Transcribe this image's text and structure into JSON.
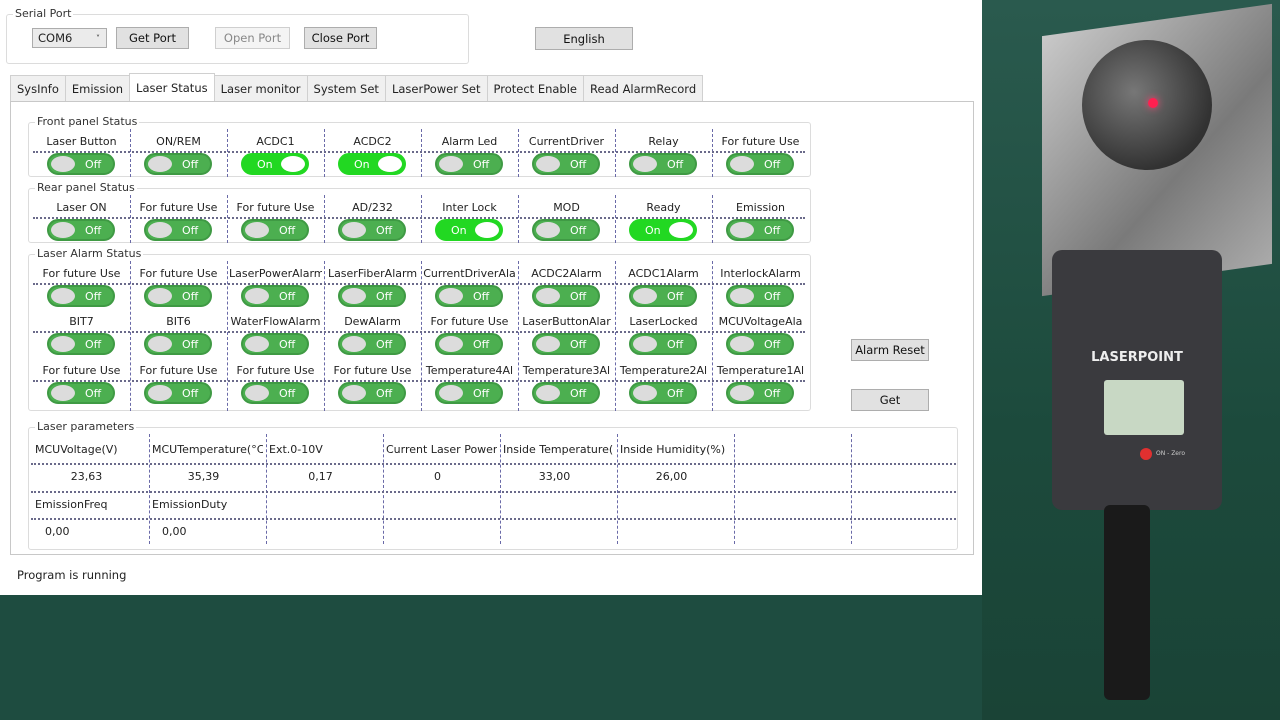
{
  "serial_port": {
    "title": "Serial Port",
    "port_value": "COM6",
    "get_port": "Get Port",
    "open_port": "Open Port",
    "close_port": "Close Port",
    "language": "English"
  },
  "tabs": [
    {
      "label": "SysInfo"
    },
    {
      "label": "Emission"
    },
    {
      "label": "Laser Status",
      "active": true
    },
    {
      "label": "Laser monitor"
    },
    {
      "label": "System Set"
    },
    {
      "label": "LaserPower Set"
    },
    {
      "label": "Protect Enable"
    },
    {
      "label": "Read AlarmRecord"
    }
  ],
  "front_panel": {
    "title": "Front panel Status",
    "items": [
      [
        "Laser Button",
        "Off"
      ],
      [
        "ON/REM",
        "Off"
      ],
      [
        "ACDC1",
        "On"
      ],
      [
        "ACDC2",
        "On"
      ],
      [
        "Alarm Led",
        "Off"
      ],
      [
        "CurrentDriver",
        "Off"
      ],
      [
        "Relay",
        "Off"
      ],
      [
        "For future Use",
        "Off"
      ]
    ]
  },
  "rear_panel": {
    "title": "Rear panel Status",
    "items": [
      [
        "Laser ON",
        "Off"
      ],
      [
        "For future Use",
        "Off"
      ],
      [
        "For future Use",
        "Off"
      ],
      [
        "AD/232",
        "Off"
      ],
      [
        "Inter Lock",
        "On"
      ],
      [
        "MOD",
        "Off"
      ],
      [
        "Ready",
        "On"
      ],
      [
        "Emission",
        "Off"
      ]
    ]
  },
  "alarm": {
    "title": "Laser Alarm Status",
    "items": [
      [
        "For future Use",
        "Off"
      ],
      [
        "For future Use",
        "Off"
      ],
      [
        "LaserPowerAlarm",
        "Off"
      ],
      [
        "LaserFiberAlarm",
        "Off"
      ],
      [
        "CurrentDriverAla",
        "Off"
      ],
      [
        "ACDC2Alarm",
        "Off"
      ],
      [
        "ACDC1Alarm",
        "Off"
      ],
      [
        "InterlockAlarm",
        "Off"
      ],
      [
        "BIT7",
        "Off"
      ],
      [
        "BIT6",
        "Off"
      ],
      [
        "WaterFlowAlarm",
        "Off"
      ],
      [
        "DewAlarm",
        "Off"
      ],
      [
        "For future Use",
        "Off"
      ],
      [
        "LaserButtonAlar",
        "Off"
      ],
      [
        "LaserLocked",
        "Off"
      ],
      [
        "MCUVoltageAla",
        "Off"
      ],
      [
        "For future Use",
        "Off"
      ],
      [
        "For future Use",
        "Off"
      ],
      [
        "For future Use",
        "Off"
      ],
      [
        "For future Use",
        "Off"
      ],
      [
        "Temperature4Al",
        "Off"
      ],
      [
        "Temperature3Al",
        "Off"
      ],
      [
        "Temperature2Al",
        "Off"
      ],
      [
        "Temperature1Al",
        "Off"
      ]
    ]
  },
  "buttons": {
    "alarm_reset": "Alarm Reset",
    "get": "Get"
  },
  "parameters": {
    "title": "Laser parameters",
    "rows": [
      [
        "MCUVoltage(V)",
        "MCUTemperature(°C",
        "Ext.0-10V",
        "Current Laser Power(",
        "Inside Temperature(°",
        "Inside Humidity(%)",
        "",
        ""
      ],
      [
        "23,63",
        "35,39",
        "0,17",
        "0",
        "33,00",
        "26,00",
        "",
        ""
      ],
      [
        "EmissionFreq",
        "EmissionDuty",
        "",
        "",
        "",
        "",
        "",
        ""
      ],
      [
        "0,00",
        "0,00",
        "",
        "",
        "",
        "",
        "",
        ""
      ]
    ]
  },
  "status_text": "Program is running",
  "photo": {
    "device_brand": "LASERPOINT",
    "device_button": "ON - Zero"
  },
  "colors": {
    "toggle_off": "#4caf50",
    "toggle_on": "#22d822"
  }
}
